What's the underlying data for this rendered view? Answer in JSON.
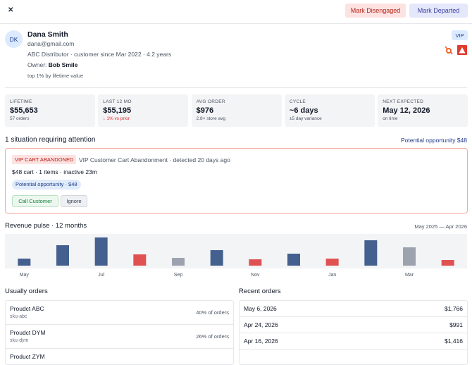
{
  "header": {
    "close": "✕",
    "buttons": [
      "Mark Disengaged",
      "Mark Departed"
    ]
  },
  "profile": {
    "initials": "DK",
    "name": "Dana Smith",
    "email": "dana@gmail.com",
    "details": "ABC Distributor · customer since Mar 2022 · 4.2 years",
    "owner_label": "Owner:",
    "owner": "Bob Smile",
    "rank": "top 1% by lifetime value",
    "badge": "VIP"
  },
  "stats": [
    {
      "label": "LIFETIME",
      "value": "$55,653",
      "note": "57 orders"
    },
    {
      "label": "LAST 12 MO",
      "value": "$55,195",
      "note": "↓ 1% vs prior"
    },
    {
      "label": "AVG ORDER",
      "value": "$976",
      "note": "2.8× store avg"
    },
    {
      "label": "CYCLE",
      "value": "~6 days",
      "note": "±5 day variance"
    },
    {
      "label": "NEXT EXPECTED",
      "value": "May 12, 2026",
      "note": "on time"
    }
  ],
  "attention": {
    "title": "1 situation requiring attention",
    "summary": "Potential opportunity $48",
    "alert": {
      "tag": "VIP CART ABANDONED",
      "description": "VIP Customer Cart Abandonment · detected 20 days ago",
      "detail": "$48 cart · 1 items · inactive 23m",
      "opportunity": "Potential opportunity · $48",
      "actions": [
        "Call Customer",
        "Ignore"
      ]
    }
  },
  "revenue_pulse": {
    "title": "Revenue pulse · 12 months",
    "range": "May 2025 — Apr 2026",
    "labels": [
      "May",
      null,
      "Jul",
      null,
      "Sep",
      null,
      "Nov",
      null,
      "Jan",
      null,
      "Mar",
      null
    ],
    "values": [
      10,
      29,
      40,
      16,
      11,
      22,
      9,
      17,
      10,
      36,
      26,
      8
    ],
    "colors": [
      "#44608e",
      "#44608e",
      "#44608e",
      "#e05252",
      "#9ca3af",
      "#44608e",
      "#e05252",
      "#44608e",
      "#e05252",
      "#44608e",
      "#9ca3af",
      "#e05252"
    ]
  },
  "usual_orders": {
    "title": "Usually orders",
    "items": [
      {
        "name": "Proudct ABC",
        "sku": "sku-abc",
        "share": "40% of orders"
      },
      {
        "name": "Proudct DYM",
        "sku": "sku-dym",
        "share": "26% of orders"
      },
      {
        "name": "Product ZYM"
      }
    ]
  },
  "recent_orders": {
    "title": "Recent orders",
    "items": [
      {
        "date": "May 6, 2026",
        "amount": "$1,766"
      },
      {
        "date": "Apr 24, 2026",
        "amount": "$991"
      },
      {
        "date": "Apr 16, 2026",
        "amount": "$1,416"
      },
      {
        "date": "",
        "amount": ""
      }
    ]
  }
}
